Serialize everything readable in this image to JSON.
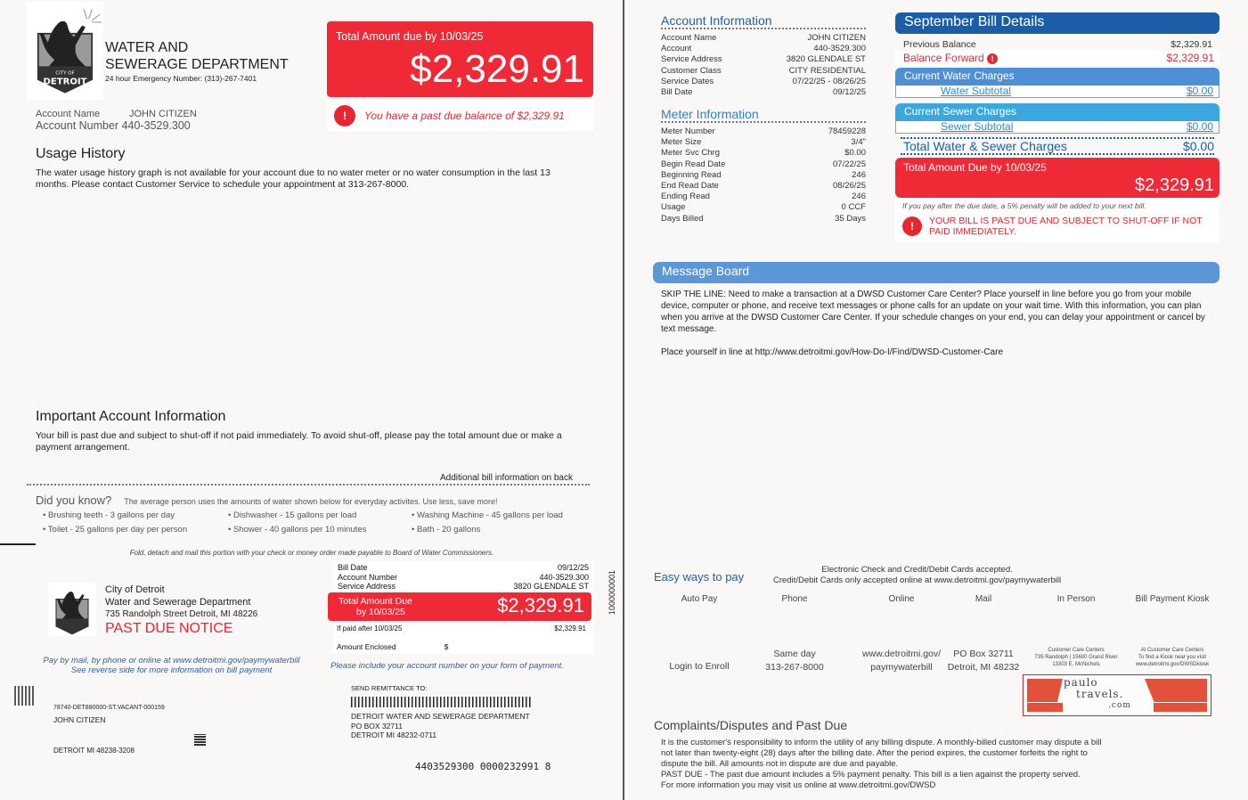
{
  "header": {
    "dept_line1": "WATER AND",
    "dept_line2": "SEWERAGE DEPARTMENT",
    "emergency": "24 hour Emergency Number: (313)-267-7401",
    "logo_text_top": "CITY OF",
    "logo_text": "DETROIT"
  },
  "account": {
    "name_label": "Account Name",
    "name": "JOHN CITIZEN",
    "number_label": "Account Number",
    "number": "440-3529.300"
  },
  "total_box": {
    "label": "Total Amount due by 10/03/25",
    "amount": "$2,329.91"
  },
  "past_due_msg": "You have a past due balance of $2,329.91",
  "usage": {
    "title": "Usage History",
    "text": "The water usage history graph is not available for your account due to no water meter or no water consumption in the last 13 months. Please contact Customer Service to schedule your appointment at 313-267-8000."
  },
  "important": {
    "title": "Important Account Information",
    "text": "Your bill is past due and subject to shut-off if not paid immediately.  To avoid shut-off, please pay the total amount due or make a payment arrangement."
  },
  "additional": "Additional bill information on back",
  "did_you_know": {
    "title": "Did you know?",
    "intro": "The average person uses the amounts of water shown below for everyday activites.  Use less, save more!",
    "items": [
      "Brushing teeth - 3 gallons per day",
      "Dishwasher - 15 gallons per load",
      "Washing Machine - 45 gallons per load",
      "Toilet - 25 gallons per day per person",
      "Shower - 40 gallons per 10 minutes",
      "Bath - 20 gallons"
    ]
  },
  "fold_note": "Fold, detach and mail this portion with your check or money order made  payable to Board of Water  Commissioners.",
  "stub": {
    "city": "City of Detroit",
    "dept": "Water and Sewerage Department",
    "address": "735 Randolph Street Detroit, MI 48226",
    "notice": "PAST DUE NOTICE",
    "bill_date_label": "Bill Date",
    "bill_date": "09/12/25",
    "acct_label": "Account Number",
    "acct": "440-3529.300",
    "svc_label": "Service Address",
    "svc": "3820 GLENDALE ST",
    "due_label1": "Total Amount Due",
    "due_label2": "by 10/03/25",
    "due_amount": "$2,329.91",
    "after_label": "If paid after 10/03/25",
    "after_amount": "$2,329.91",
    "enclosed_label": "Amount Enclosed",
    "enclosed_symbol": "$",
    "pay_note1": "Pay by mail, by phone or online at www.detroitmi.gov/paymywaterbill",
    "pay_note2": "See reverse side for more information on bill payment",
    "include_note": "Please include your account number on your form of payment.",
    "side_code": "1000000001"
  },
  "mailing": {
    "code": "78740-DET880000-ST.VACANT-000159",
    "name": "JOHN CITIZEN",
    "city": "DETROIT  MI  48238-3208",
    "remit_label": "SEND REMITTANCE TO:",
    "remit1": "DETROIT WATER AND SEWERAGE DEPARTMENT",
    "remit2": "PO BOX 32711",
    "remit3": "DETROIT  MI  48232-0711",
    "scanline": "4403529300 0000232991 8"
  },
  "account_info": {
    "title": "Account Information",
    "rows": [
      [
        "Account Name",
        "JOHN CITIZEN"
      ],
      [
        "Account",
        "440-3529.300"
      ],
      [
        "Service Address",
        "3820 GLENDALE ST"
      ],
      [
        "Customer Class",
        "CITY RESIDENTIAL"
      ],
      [
        "Service Dates",
        "07/22/25 - 08/26/25"
      ],
      [
        "Bill Date",
        "09/12/25"
      ]
    ]
  },
  "meter_info": {
    "title": "Meter Information",
    "rows": [
      [
        "Meter Number",
        "78459228"
      ],
      [
        "Meter Size",
        "3/4\""
      ],
      [
        "Meter Svc Chrg",
        "$0.00"
      ],
      [
        "Begin Read Date",
        "07/22/25"
      ],
      [
        "Beginning Read",
        "246"
      ],
      [
        "End Read Date",
        "08/26/25"
      ],
      [
        "Ending Read",
        "246"
      ],
      [
        "Usage",
        "0 CCF"
      ],
      [
        "Days Billed",
        "35 Days"
      ]
    ]
  },
  "bill_details": {
    "title": "September Bill Details",
    "prev_label": "Previous Balance",
    "prev": "$2,329.91",
    "fwd_label": "Balance Forward",
    "fwd": "$2,329.91",
    "water_title": "Current Water Charges",
    "water_sub_label": "Water Subtotal",
    "water_sub": "$0.00",
    "sewer_title": "Current Sewer Charges",
    "sewer_sub_label": "Sewer Subtotal",
    "sewer_sub": "$0.00",
    "total_ws_label": "Total Water & Sewer Charges",
    "total_ws": "$0.00",
    "due_label": "Total Amount Due by 10/03/25",
    "due": "$2,329.91",
    "penalty": "If you pay after the due date, a 5% penalty will be added to your next bill.",
    "shutoff": "YOUR BILL IS PAST DUE AND SUBJECT TO SHUT-OFF IF NOT PAID IMMEDIATELY."
  },
  "message_board": {
    "title": "Message Board",
    "p1": "SKIP THE LINE: Need to make a transaction at a DWSD Customer Care Center? Place yourself in line before you go from your mobile device, computer or phone, and receive text messages or phone calls for an update on your wait time. With this information, you can plan when you arrive at the DWSD Customer Care Center. If your schedule changes on your end, you can delay your appointment or cancel by text message.",
    "p2": "Place yourself in line at http://www.detroitmi.gov/How-Do-I/Find/DWSD-Customer-Care"
  },
  "pay": {
    "title": "Easy ways to pay",
    "note1": "Electronic Check and Credit/Debit Cards accepted.",
    "note2": "Credit/Debit Cards only accepted online at www.detroitmi.gov/paymywaterbill",
    "methods": [
      {
        "label": "Auto Pay",
        "d1": "Login to Enroll",
        "d2": ""
      },
      {
        "label": "Phone",
        "d1": "Same day",
        "d2": "313-267-8000"
      },
      {
        "label": "Online",
        "d1": "www.detroitmi.gov/",
        "d2": "paymywaterbill"
      },
      {
        "label": "Mail",
        "d1": "PO Box 32711",
        "d2": "Detroit, MI 48232"
      },
      {
        "label": "In Person",
        "d1": "Customer Care Centers",
        "d2": "735 Randolph | 15600 Grand River",
        "d3": "13303 E. McNichols"
      },
      {
        "label": "Bill Payment Kiosk",
        "d1": "At Customer Care Centers",
        "d2": "To find a Kiosk near you visit",
        "d3": "www.detroitmi.gov/DWSDkiosk"
      }
    ]
  },
  "complaints": {
    "title": "Complaints/Disputes and Past Due",
    "lines": [
      "It is the customer's responsibility to inform the utility of any billing dispute.  A monthly-billed customer may dispute a bill",
      "not later than twenty-eight (28) days after the billing date.  After the period expires, the customer forfeits the right to",
      "dispute the bill.  All amounts not in dispute are due and payable.",
      "PAST DUE - The past due amount includes a 5% payment penalty.  This bill is a lien against the property served.",
      "For more information you may visit us online at www.detroitmi.gov/DWSD"
    ]
  },
  "watermark": {
    "l1": "paulo",
    "l2": "travels.",
    "l3": ".com"
  },
  "colors": {
    "red": "#ef2a36",
    "navy": "#1a5ea8",
    "water": "#4f8fd6",
    "sewer": "#3aa7de"
  }
}
